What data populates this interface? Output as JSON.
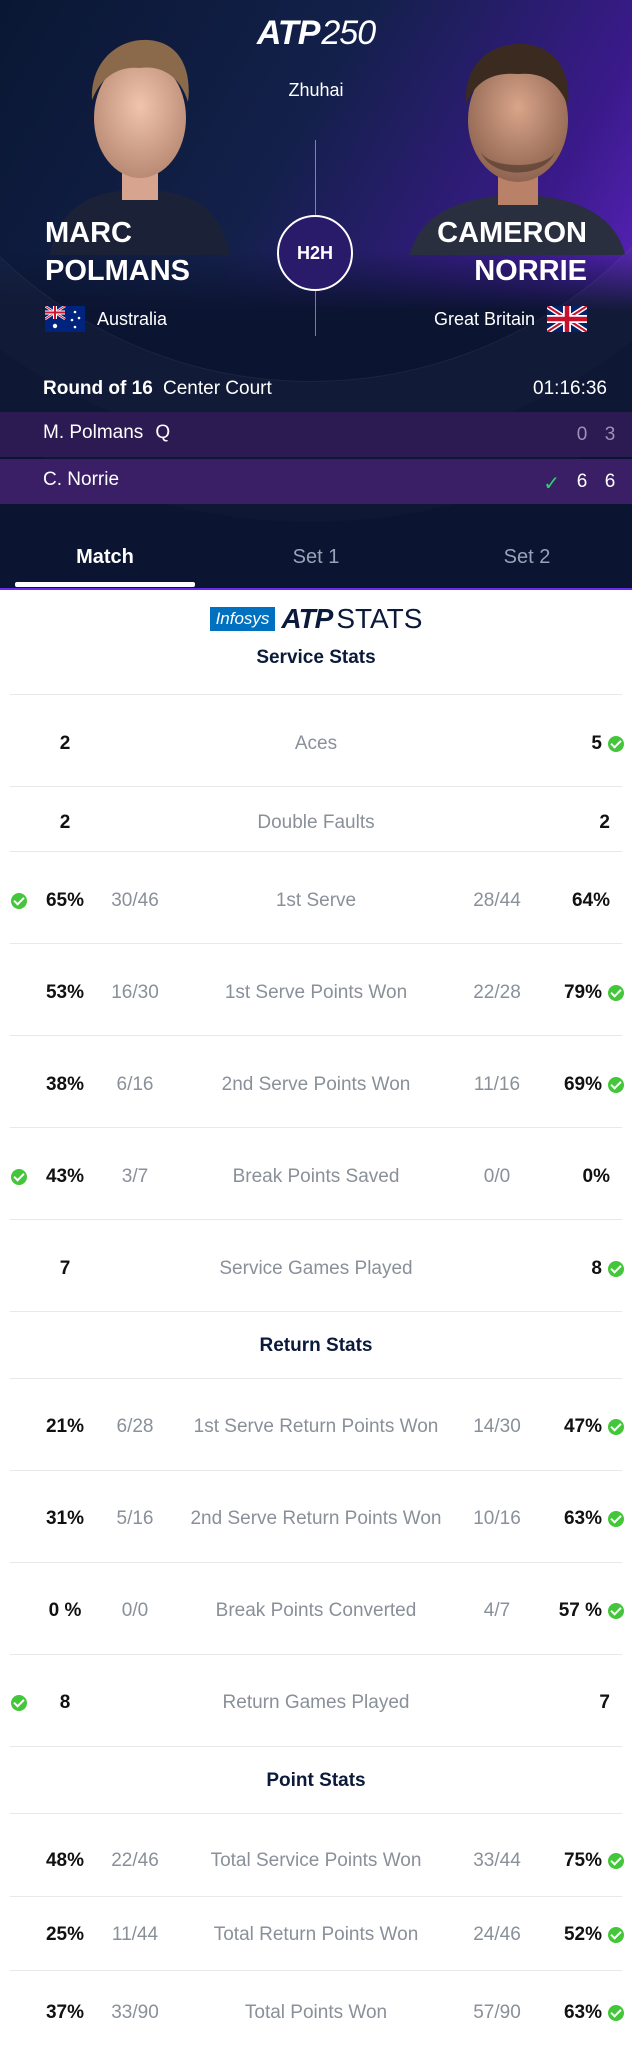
{
  "header": {
    "tournament_logo": "ATP",
    "tournament_level": "250",
    "city": "Zhuhai",
    "h2h_label": "H2H",
    "player1": {
      "first": "MARC",
      "last": "POLMANS",
      "country": "Australia"
    },
    "player2": {
      "first": "CAMERON",
      "last": "NORRIE",
      "country": "Great Britain"
    }
  },
  "match": {
    "round": "Round of 16",
    "court": "Center Court",
    "duration": "01:16:36",
    "rows": [
      {
        "name": "M. Polmans",
        "seed": "Q",
        "sets": [
          "0",
          "3"
        ],
        "winner": false
      },
      {
        "name": "C. Norrie",
        "seed": "",
        "sets": [
          "6",
          "6"
        ],
        "winner": true
      }
    ]
  },
  "tabs": [
    "Match",
    "Set 1",
    "Set 2"
  ],
  "active_tab": "Match",
  "stats_logo": {
    "sponsor": "Infosys",
    "brand": "ATP",
    "suffix": "STATS"
  },
  "sections": {
    "service": "Service Stats",
    "return": "Return Stats",
    "point": "Point Stats"
  },
  "service_stats": [
    {
      "label": "Aces",
      "lv": "2",
      "lf": "",
      "rf": "",
      "rv": "5",
      "winner": "right"
    },
    {
      "label": "Double Faults",
      "lv": "2",
      "lf": "",
      "rf": "",
      "rv": "2",
      "winner": "none"
    },
    {
      "label": "1st Serve",
      "lv": "65%",
      "lf": "30/46",
      "rf": "28/44",
      "rv": "64%",
      "winner": "left"
    },
    {
      "label": "1st Serve Points Won",
      "lv": "53%",
      "lf": "16/30",
      "rf": "22/28",
      "rv": "79%",
      "winner": "right"
    },
    {
      "label": "2nd Serve Points Won",
      "lv": "38%",
      "lf": "6/16",
      "rf": "11/16",
      "rv": "69%",
      "winner": "right"
    },
    {
      "label": "Break Points Saved",
      "lv": "43%",
      "lf": "3/7",
      "rf": "0/0",
      "rv": "0%",
      "winner": "left"
    },
    {
      "label": "Service Games Played",
      "lv": "7",
      "lf": "",
      "rf": "",
      "rv": "8",
      "winner": "right"
    }
  ],
  "return_stats": [
    {
      "label": "1st Serve Return Points Won",
      "lv": "21%",
      "lf": "6/28",
      "rf": "14/30",
      "rv": "47%",
      "winner": "right"
    },
    {
      "label": "2nd Serve Return Points Won",
      "lv": "31%",
      "lf": "5/16",
      "rf": "10/16",
      "rv": "63%",
      "winner": "right"
    },
    {
      "label": "Break Points Converted",
      "lv": "0 %",
      "lf": "0/0",
      "rf": "4/7",
      "rv": "57 %",
      "winner": "right"
    },
    {
      "label": "Return Games Played",
      "lv": "8",
      "lf": "",
      "rf": "",
      "rv": "7",
      "winner": "left"
    }
  ],
  "point_stats": [
    {
      "label": "Total Service Points Won",
      "lv": "48%",
      "lf": "22/46",
      "rf": "33/44",
      "rv": "75%",
      "winner": "right"
    },
    {
      "label": "Total Return Points Won",
      "lv": "25%",
      "lf": "11/44",
      "rf": "24/46",
      "rv": "52%",
      "winner": "right"
    },
    {
      "label": "Total Points Won",
      "lv": "37%",
      "lf": "33/90",
      "rf": "57/90",
      "rv": "63%",
      "winner": "right"
    }
  ],
  "colors": {
    "winner_check": "#44c63a",
    "hero_dark": "#0b1430",
    "hero_purple": "#7a2cf0",
    "score_row_1": "#2c1a52",
    "score_row_2": "#3a1f66"
  }
}
